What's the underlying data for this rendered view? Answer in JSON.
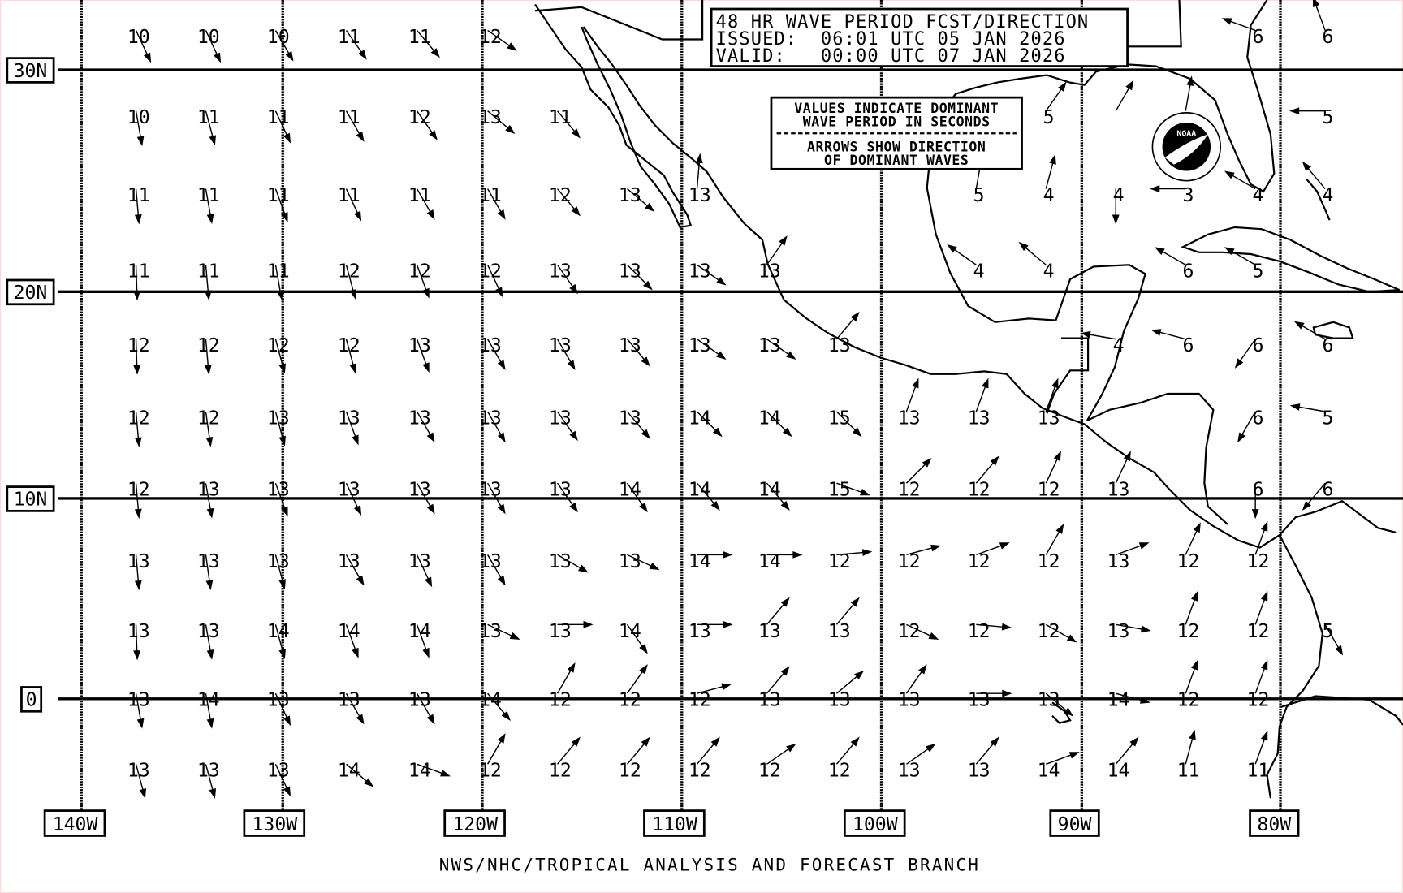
{
  "title": {
    "line1": "48 HR WAVE PERIOD FCST/DIRECTION",
    "line2": "ISSUED:  06:01 UTC 05 JAN 2026",
    "line3": "VALID:   00:00 UTC 07 JAN 2026"
  },
  "legend": {
    "line1": "VALUES INDICATE DOMINANT",
    "line2": "WAVE PERIOD IN SECONDS",
    "line3": "ARROWS SHOW DIRECTION",
    "line4": "OF DOMINANT WAVES"
  },
  "lat_labels": [
    "30N",
    "20N",
    "10N",
    "0"
  ],
  "lon_labels": [
    "140W",
    "130W",
    "120W",
    "110W",
    "100W",
    "90W",
    "80W"
  ],
  "footer": "NWS/NHC/TROPICAL ANALYSIS AND FORECAST BRANCH",
  "logo": {
    "text": "NOAA",
    "ring_text": "NATIONAL OCEANIC AND ATMOSPHERIC ADMINISTRATION - U.S. DEPARTMENT OF COMMERCE"
  },
  "colors": {
    "ink": "#000000",
    "background": "#ffffff"
  },
  "grid_note": "cells: [period_seconds, arrow_direction_toward_degrees]",
  "cells": [
    [
      [
        "10",
        155
      ],
      [
        "10",
        155
      ],
      [
        "10",
        150
      ],
      [
        "11",
        145
      ],
      [
        "11",
        140
      ],
      [
        "12",
        125
      ],
      null,
      null,
      null,
      null,
      null,
      null,
      null,
      null,
      null,
      null,
      [
        "6",
        290
      ],
      [
        "6",
        340
      ]
    ],
    [
      [
        "10",
        170
      ],
      [
        "11",
        165
      ],
      [
        "11",
        155
      ],
      [
        "11",
        150
      ],
      [
        "12",
        145
      ],
      [
        "13",
        130
      ],
      [
        "11",
        140
      ],
      null,
      null,
      null,
      null,
      null,
      null,
      [
        "5",
        35
      ],
      [
        "",
        30
      ],
      [
        "",
        10
      ],
      null,
      [
        "5",
        270
      ]
    ],
    [
      [
        "11",
        175
      ],
      [
        "11",
        170
      ],
      [
        "11",
        160
      ],
      [
        "11",
        155
      ],
      [
        "11",
        150
      ],
      [
        "11",
        150
      ],
      [
        "12",
        140
      ],
      [
        "13",
        130
      ],
      [
        "13",
        5
      ],
      null,
      null,
      null,
      [
        "5",
        10
      ],
      [
        "4",
        15
      ],
      [
        "4",
        180
      ],
      [
        "3",
        270
      ],
      [
        "4",
        300
      ],
      [
        "4",
        320
      ]
    ],
    [
      [
        "11",
        178
      ],
      [
        "11",
        175
      ],
      [
        "11",
        170
      ],
      [
        "12",
        165
      ],
      [
        "12",
        160
      ],
      [
        "12",
        155
      ],
      [
        "13",
        145
      ],
      [
        "13",
        135
      ],
      [
        "13",
        125
      ],
      [
        "13",
        35
      ],
      null,
      null,
      [
        "4",
        305
      ],
      [
        "4",
        310
      ],
      null,
      [
        "6",
        300
      ],
      [
        "5",
        300
      ],
      null
    ],
    [
      [
        "12",
        178
      ],
      [
        "12",
        175
      ],
      [
        "12",
        165
      ],
      [
        "12",
        165
      ],
      [
        "13",
        160
      ],
      [
        "13",
        150
      ],
      [
        "13",
        150
      ],
      [
        "13",
        140
      ],
      [
        "13",
        125
      ],
      [
        "13",
        125
      ],
      [
        "13",
        40
      ],
      null,
      null,
      null,
      [
        "4",
        280
      ],
      [
        "6",
        285
      ],
      [
        "6",
        215
      ],
      [
        "6",
        300
      ]
    ],
    [
      [
        "12",
        175
      ],
      [
        "12",
        172
      ],
      [
        "13",
        165
      ],
      [
        "13",
        160
      ],
      [
        "13",
        150
      ],
      [
        "13",
        150
      ],
      [
        "13",
        145
      ],
      [
        "13",
        140
      ],
      [
        "14",
        135
      ],
      [
        "14",
        135
      ],
      [
        "15",
        135
      ],
      [
        "13",
        20
      ],
      [
        "13",
        20
      ],
      [
        "13",
        20
      ],
      null,
      null,
      [
        "6",
        210
      ],
      [
        "5",
        280
      ]
    ],
    [
      [
        "12",
        175
      ],
      [
        "13",
        170
      ],
      [
        "13",
        160
      ],
      [
        "13",
        155
      ],
      [
        "13",
        150
      ],
      [
        "13",
        150
      ],
      [
        "13",
        145
      ],
      [
        "14",
        145
      ],
      [
        "14",
        140
      ],
      [
        "14",
        140
      ],
      [
        "15",
        110
      ],
      [
        "12",
        45
      ],
      [
        "12",
        40
      ],
      [
        "12",
        25
      ],
      [
        "13",
        25
      ],
      null,
      [
        "6",
        180
      ],
      [
        "6",
        220
      ]
    ],
    [
      [
        "13",
        175
      ],
      [
        "13",
        172
      ],
      [
        "13",
        165
      ],
      [
        "13",
        150
      ],
      [
        "13",
        155
      ],
      [
        "13",
        150
      ],
      [
        "13",
        120
      ],
      [
        "13",
        115
      ],
      [
        "14",
        90
      ],
      [
        "14",
        90
      ],
      [
        "12",
        85
      ],
      [
        "12",
        75
      ],
      [
        "12",
        70
      ],
      [
        "12",
        30
      ],
      [
        "13",
        70
      ],
      [
        "12",
        25
      ],
      [
        "12",
        20
      ],
      null
    ],
    [
      [
        "13",
        178
      ],
      [
        "13",
        170
      ],
      [
        "14",
        165
      ],
      [
        "14",
        160
      ],
      [
        "14",
        160
      ],
      [
        "13",
        115
      ],
      [
        "13",
        90
      ],
      [
        "14",
        145
      ],
      [
        "13",
        90
      ],
      [
        "13",
        40
      ],
      [
        "13",
        40
      ],
      [
        "12",
        115
      ],
      [
        "12",
        95
      ],
      [
        "12",
        120
      ],
      [
        "13",
        100
      ],
      [
        "12",
        20
      ],
      [
        "12",
        20
      ],
      [
        "5",
        150
      ]
    ],
    [
      [
        "13",
        170
      ],
      [
        "14",
        170
      ],
      [
        "13",
        155
      ],
      [
        "13",
        150
      ],
      [
        "13",
        150
      ],
      [
        "14",
        140
      ],
      [
        "12",
        30
      ],
      [
        "12",
        35
      ],
      [
        "12",
        75
      ],
      [
        "13",
        40
      ],
      [
        "13",
        50
      ],
      [
        "13",
        35
      ],
      [
        "13",
        90
      ],
      [
        "13",
        130
      ],
      [
        "14",
        105
      ],
      [
        "12",
        20
      ],
      [
        "12",
        20
      ],
      null
    ],
    [
      [
        "13",
        165
      ],
      [
        "13",
        165
      ],
      [
        "13",
        155
      ],
      [
        "14",
        130
      ],
      [
        "14",
        110
      ],
      [
        "12",
        30
      ],
      [
        "12",
        40
      ],
      [
        "12",
        40
      ],
      [
        "12",
        40
      ],
      [
        "12",
        55
      ],
      [
        "12",
        40
      ],
      [
        "13",
        55
      ],
      [
        "13",
        40
      ],
      [
        "14",
        70
      ],
      [
        "14",
        40
      ],
      [
        "11",
        15
      ],
      [
        "11",
        20
      ],
      null
    ]
  ]
}
